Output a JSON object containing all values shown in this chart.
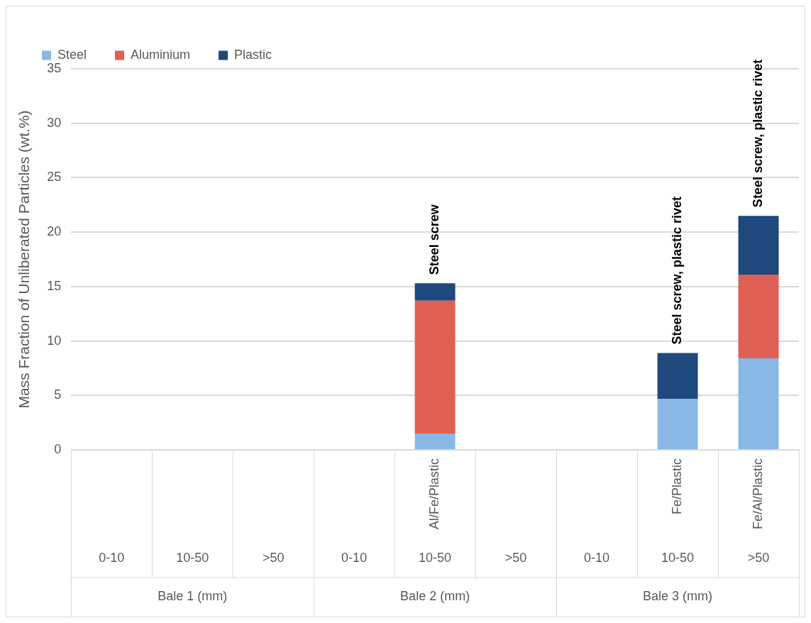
{
  "chart_data": {
    "type": "bar",
    "stacked": true,
    "ylabel": "Mass Fraction of Unliberated Particles (wt.%)",
    "categories": [
      "0-10",
      "10-50",
      ">50",
      "0-10",
      "10-50",
      ">50",
      "0-10",
      "10-50",
      ">50"
    ],
    "series": [
      {
        "name": "Steel",
        "color": "#8ab8e6",
        "values": [
          null,
          null,
          null,
          null,
          1.5,
          null,
          null,
          4.7,
          8.4
        ],
        "value_labels": [
          null,
          null,
          null,
          null,
          "Al/Fe/Plastic",
          null,
          null,
          "Fe/Plastic",
          "Fe/Al/Plastic"
        ]
      },
      {
        "name": "Aluminium",
        "color": "#e05f53",
        "values": [
          null,
          null,
          null,
          null,
          12.2,
          null,
          null,
          null,
          7.7
        ]
      },
      {
        "name": "Plastic",
        "color": "#1f497d",
        "values": [
          null,
          null,
          null,
          null,
          1.6,
          null,
          null,
          4.2,
          5.4
        ],
        "value_labels": [
          null,
          null,
          null,
          null,
          "Steel screw",
          null,
          null,
          "Steel screw, plastic rivet",
          "Steel screw, plastic rivet"
        ]
      }
    ],
    "annotations": [
      "Bale 1 (mm)",
      "Bale 2 (mm)",
      "Bale 3 (mm)"
    ],
    "ylim": [
      0,
      35
    ],
    "yticks": [
      0,
      5,
      10,
      15,
      20,
      25,
      30,
      35
    ],
    "grid": "y",
    "legend": "top left"
  }
}
